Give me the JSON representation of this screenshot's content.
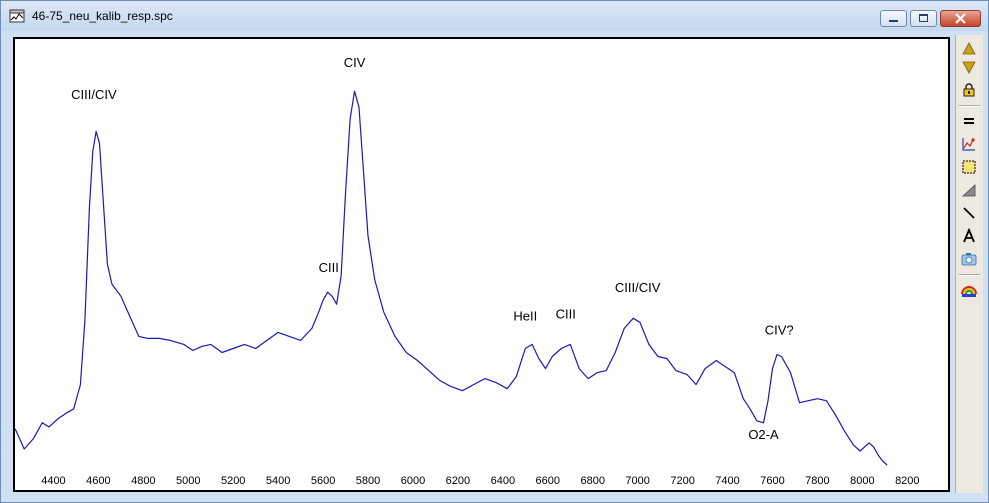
{
  "window": {
    "title": "46-75_neu_kalib_resp.spc"
  },
  "toolbar": {
    "items": [
      {
        "icon": "scroll-up-icon"
      },
      {
        "icon": "scroll-down-icon"
      },
      {
        "icon": "lock-icon"
      },
      {
        "icon": "equals-icon"
      },
      {
        "icon": "graph-properties-icon"
      },
      {
        "icon": "select-rectangle-icon"
      },
      {
        "icon": "fill-area-icon"
      },
      {
        "icon": "draw-line-icon"
      },
      {
        "icon": "text-tool-icon"
      },
      {
        "icon": "camera-icon"
      },
      {
        "icon": "rainbow-spectrum-icon"
      }
    ]
  },
  "chart_data": {
    "type": "line",
    "title": "",
    "xlabel": "",
    "ylabel": "",
    "xlim": [
      4220,
      8390
    ],
    "ylim": [
      0,
      1.0
    ],
    "x_ticks": [
      4400,
      4600,
      4800,
      5000,
      5200,
      5400,
      5600,
      5800,
      6000,
      6200,
      6400,
      6600,
      6800,
      7000,
      7200,
      7400,
      7600,
      7800,
      8000,
      8200
    ],
    "grid": false,
    "line_color": "#1a1ab4",
    "series": [
      {
        "x": [
          4230,
          4270,
          4310,
          4350,
          4380,
          4420,
          4460,
          4490,
          4520,
          4540,
          4560,
          4575,
          4590,
          4605,
          4620,
          4640,
          4660,
          4700,
          4740,
          4780,
          4820,
          4870,
          4920,
          4980,
          5020,
          5060,
          5100,
          5150,
          5200,
          5250,
          5300,
          5350,
          5400,
          5450,
          5500,
          5550,
          5580,
          5600,
          5620,
          5640,
          5660,
          5680,
          5700,
          5720,
          5740,
          5760,
          5780,
          5800,
          5830,
          5870,
          5920,
          5970,
          6020,
          6070,
          6120,
          6170,
          6220,
          6270,
          6320,
          6370,
          6420,
          6460,
          6500,
          6530,
          6560,
          6590,
          6620,
          6660,
          6700,
          6740,
          6780,
          6820,
          6860,
          6900,
          6940,
          6980,
          7010,
          7050,
          7090,
          7130,
          7170,
          7220,
          7260,
          7300,
          7350,
          7390,
          7430,
          7470,
          7500,
          7530,
          7560,
          7580,
          7600,
          7620,
          7640,
          7680,
          7720,
          7760,
          7800,
          7840,
          7880,
          7920,
          7960,
          7990,
          8010,
          8030,
          8050,
          8070,
          8090,
          8110
        ],
        "y": [
          0.07,
          0.02,
          0.045,
          0.085,
          0.075,
          0.095,
          0.11,
          0.12,
          0.18,
          0.34,
          0.62,
          0.76,
          0.81,
          0.78,
          0.65,
          0.48,
          0.43,
          0.4,
          0.35,
          0.3,
          0.295,
          0.295,
          0.29,
          0.28,
          0.265,
          0.275,
          0.28,
          0.26,
          0.27,
          0.28,
          0.27,
          0.29,
          0.31,
          0.3,
          0.29,
          0.32,
          0.36,
          0.39,
          0.41,
          0.4,
          0.38,
          0.45,
          0.66,
          0.84,
          0.91,
          0.87,
          0.71,
          0.55,
          0.44,
          0.36,
          0.3,
          0.26,
          0.24,
          0.215,
          0.19,
          0.175,
          0.165,
          0.18,
          0.195,
          0.185,
          0.17,
          0.2,
          0.27,
          0.28,
          0.245,
          0.22,
          0.25,
          0.27,
          0.28,
          0.22,
          0.195,
          0.21,
          0.215,
          0.26,
          0.32,
          0.345,
          0.335,
          0.28,
          0.25,
          0.245,
          0.215,
          0.205,
          0.18,
          0.22,
          0.24,
          0.225,
          0.21,
          0.145,
          0.12,
          0.09,
          0.085,
          0.14,
          0.22,
          0.255,
          0.25,
          0.21,
          0.135,
          0.14,
          0.145,
          0.14,
          0.105,
          0.065,
          0.03,
          0.015,
          0.025,
          0.035,
          0.025,
          0.005,
          -0.01,
          -0.02
        ]
      }
    ],
    "annotations": [
      {
        "text": "CIII/CIV",
        "x": 4580,
        "y": 0.89
      },
      {
        "text": "CIV",
        "x": 5740,
        "y": 0.97
      },
      {
        "text": "CIII",
        "x": 5625,
        "y": 0.46
      },
      {
        "text": "HeII",
        "x": 6500,
        "y": 0.34
      },
      {
        "text": "CIII",
        "x": 6680,
        "y": 0.345
      },
      {
        "text": "CIII/CIV",
        "x": 7000,
        "y": 0.41
      },
      {
        "text": "CIV?",
        "x": 7630,
        "y": 0.305
      },
      {
        "text": "O2-A",
        "x": 7560,
        "y": 0.045
      }
    ]
  }
}
